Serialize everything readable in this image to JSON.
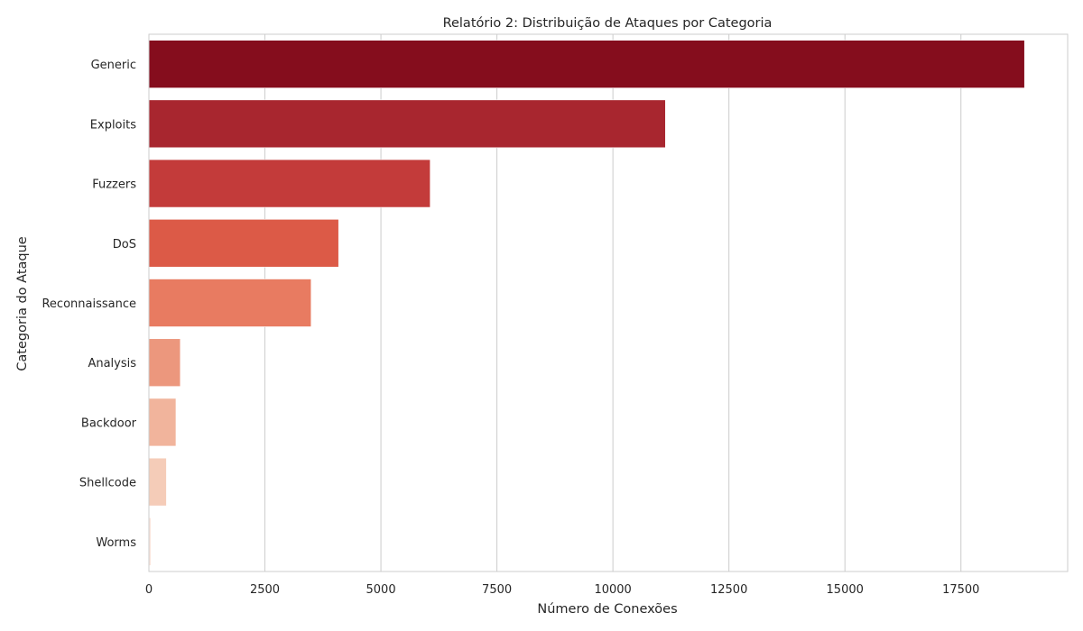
{
  "chart_data": {
    "type": "bar",
    "orientation": "horizontal",
    "title": "Relatório 2: Distribuição de Ataques por Categoria",
    "xlabel": "Número de Conexões",
    "ylabel": "Categoria do Ataque",
    "categories": [
      "Generic",
      "Exploits",
      "Fuzzers",
      "DoS",
      "Reconnaissance",
      "Analysis",
      "Backdoor",
      "Shellcode",
      "Worms"
    ],
    "values": [
      18871,
      11132,
      6062,
      4089,
      3496,
      677,
      583,
      378,
      44
    ],
    "colors": [
      "#850d1d",
      "#a8262f",
      "#c33b3a",
      "#dc5a47",
      "#e87b61",
      "#ec977d",
      "#f1b49c",
      "#f5ccb8",
      "#fbe6dc"
    ],
    "xlim": [
      0,
      19800
    ],
    "xticks": [
      0,
      2500,
      5000,
      7500,
      10000,
      12500,
      15000,
      17500
    ],
    "grid": "vertical",
    "legend": "none"
  }
}
